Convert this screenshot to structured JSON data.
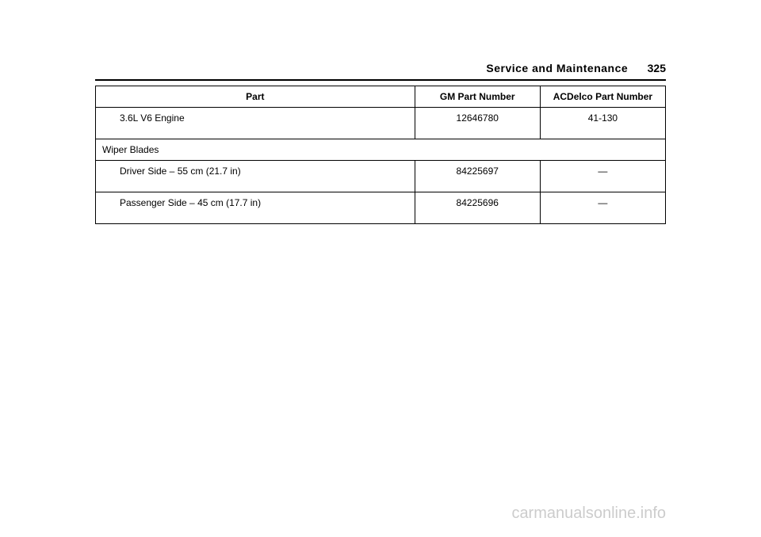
{
  "header": {
    "section_title": "Service and Maintenance",
    "page_number": "325"
  },
  "table": {
    "headers": {
      "part": "Part",
      "gm": "GM Part Number",
      "acdelco": "ACDelco Part Number"
    },
    "rows": [
      {
        "type": "item",
        "part": "3.6L V6 Engine",
        "gm": "12646780",
        "acdelco": "41-130"
      },
      {
        "type": "section",
        "part": "Wiper Blades"
      },
      {
        "type": "item",
        "part": "Driver Side – 55 cm (21.7 in)",
        "gm": "84225697",
        "acdelco": "—"
      },
      {
        "type": "item",
        "part": "Passenger Side – 45 cm (17.7 in)",
        "gm": "84225696",
        "acdelco": "—"
      }
    ]
  },
  "watermark": "carmanualsonline.info"
}
